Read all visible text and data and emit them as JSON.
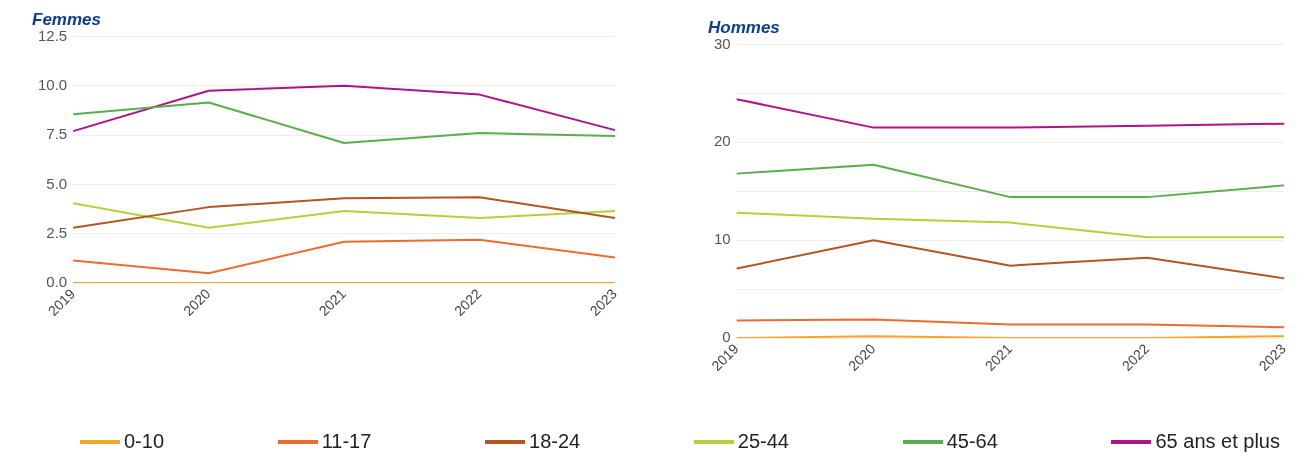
{
  "chart_data": [
    {
      "type": "line",
      "title": "Femmes",
      "categories": [
        "2019",
        "2020",
        "2021",
        "2022",
        "2023"
      ],
      "series": [
        {
          "color": "#f5a623",
          "values": [
            0,
            0,
            0,
            0,
            0
          ]
        },
        {
          "color": "#ee6a2f",
          "values": [
            1.15,
            0.5,
            2.1,
            2.2,
            1.3
          ]
        },
        {
          "color": "#b5541e",
          "values": [
            2.8,
            3.85,
            4.3,
            4.35,
            3.3
          ]
        },
        {
          "color": "#b5cf3a",
          "values": [
            4.05,
            2.8,
            3.65,
            3.3,
            3.65
          ]
        },
        {
          "color": "#5aad4e",
          "values": [
            8.55,
            9.15,
            7.1,
            7.6,
            7.45
          ]
        },
        {
          "color": "#b0128a",
          "values": [
            7.7,
            9.75,
            10.0,
            9.55,
            7.75
          ]
        }
      ],
      "ylim": [
        0,
        12.5
      ],
      "yticks": [
        {
          "value": 0,
          "label": "0.0"
        },
        {
          "value": 2.5,
          "label": "2.5"
        },
        {
          "value": 5,
          "label": "5.0"
        },
        {
          "value": 7.5,
          "label": "7.5"
        },
        {
          "value": 10,
          "label": "10.0"
        },
        {
          "value": 12.5,
          "label": "12.5"
        }
      ],
      "grid": "y",
      "marker": "none",
      "line_style": "solid"
    },
    {
      "type": "line",
      "title": "Hommes",
      "categories": [
        "2019",
        "2020",
        "2021",
        "2022",
        "2023"
      ],
      "series": [
        {
          "name": "0-10",
          "color": "#f5a623",
          "values": [
            0,
            0.2,
            0,
            0,
            0.2
          ]
        },
        {
          "name": "11-17",
          "color": "#ee6a2f",
          "values": [
            1.8,
            1.9,
            1.4,
            1.4,
            1.1
          ]
        },
        {
          "name": "18-24",
          "color": "#b5541e",
          "values": [
            7.1,
            10.0,
            7.4,
            8.2,
            6.1
          ]
        },
        {
          "name": "25-44",
          "color": "#b5cf3a",
          "values": [
            12.8,
            12.2,
            11.8,
            10.3,
            10.3
          ]
        },
        {
          "name": "45-64",
          "color": "#5aad4e",
          "values": [
            16.8,
            17.7,
            14.4,
            14.4,
            15.6
          ]
        },
        {
          "name": "65 ans et plus",
          "color": "#b0128a",
          "values": [
            24.4,
            21.5,
            21.5,
            21.7,
            21.9
          ]
        }
      ],
      "ylim": [
        0,
        30
      ],
      "yticks": [
        0,
        {
          "value": 5,
          "label": null
        },
        10,
        {
          "value": 15,
          "label": null
        },
        20,
        {
          "value": 25,
          "label": null
        },
        30
      ],
      "grid": "y",
      "legend": "bottom",
      "marker": "none",
      "line_style": "solid"
    }
  ]
}
